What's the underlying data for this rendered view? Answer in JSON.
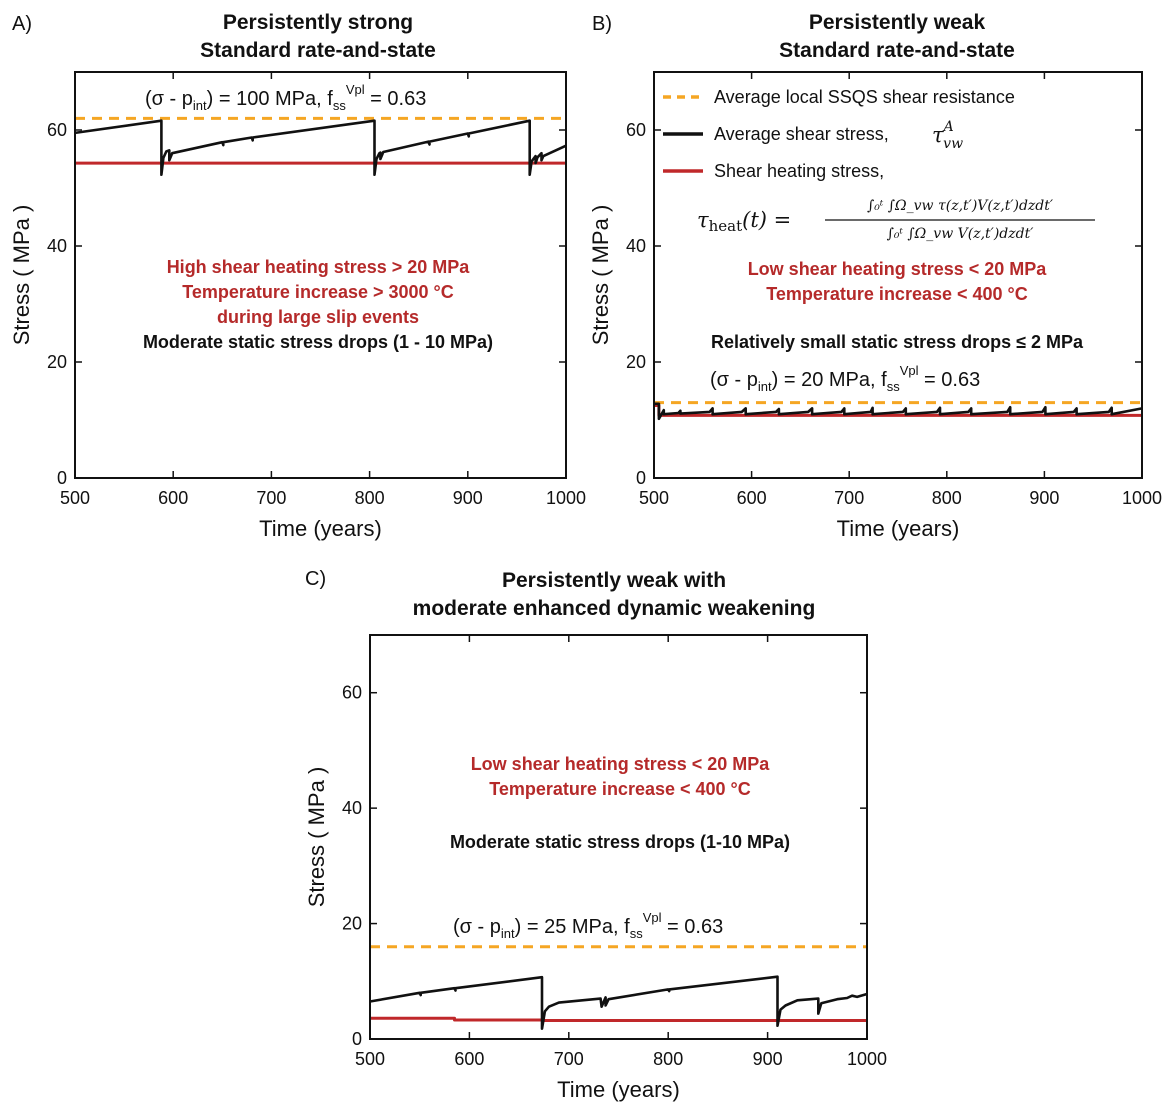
{
  "colors": {
    "resistance": "#f5a623",
    "shear": "#111111",
    "heating": "#c0282a",
    "annotation_red": "#b52a2a"
  },
  "legend": {
    "resistance": "Average local SSQS shear resistance",
    "shear": "Average shear stress,",
    "shear_symbol": "τ",
    "shear_sup": "A",
    "shear_sub": "vw",
    "heating": "Shear heating stress,",
    "formula_lhs": "τ",
    "formula_lhs_sub": "heat",
    "formula_lhs_arg": "(t) =",
    "formula_num": "∫₀ᵗ ∫Ω_vw τ(z,t′)V(z,t′)dzdt′",
    "formula_den": "∫₀ᵗ ∫Ω_vw V(z,t′)dzdt′"
  },
  "chart_data": [
    {
      "type": "line",
      "panel_label": "A)",
      "title_lines": [
        "Persistently strong",
        "Standard rate-and-state"
      ],
      "xlabel": "Time (years)",
      "ylabel": "Stress ( MPa )",
      "xlim": [
        500,
        1000
      ],
      "ylim": [
        0,
        70
      ],
      "xticks": [
        500,
        600,
        700,
        800,
        900,
        1000
      ],
      "yticks": [
        0,
        20,
        40,
        60
      ],
      "params": {
        "p1": "(σ - p",
        "p1_sub": "int",
        "p2": ") = 100 MPa,  f",
        "p2_sub": "ss",
        "p2_sup": "Vpl",
        "p3": " = 0.63"
      },
      "annotations_red": [
        "High shear heating stress > 20 MPa",
        "Temperature increase > 3000 °C",
        "during large slip events"
      ],
      "annotations_black": [
        "Moderate static stress drops  (1 - 10 MPa)"
      ],
      "series": [
        {
          "key": "resistance",
          "style": "dashed",
          "x": [
            500,
            1000
          ],
          "y": [
            62,
            62
          ]
        },
        {
          "key": "heating",
          "style": "solid",
          "x": [
            500,
            1000
          ],
          "y": [
            54.3,
            54.3
          ]
        },
        {
          "key": "shear",
          "style": "solid",
          "x": [
            500,
            588,
            588,
            590,
            593,
            596,
            596,
            599,
            650,
            651,
            651,
            680,
            681,
            681,
            805,
            805,
            807,
            810,
            811,
            811,
            814,
            860,
            861,
            861,
            900,
            901,
            901,
            963,
            963,
            965,
            969,
            969,
            971,
            975,
            975,
            977,
            1000
          ],
          "y": [
            59.5,
            61.6,
            52.3,
            55.2,
            56.3,
            56.5,
            54.8,
            56.0,
            57.9,
            57.4,
            57.9,
            58.7,
            58.2,
            58.7,
            61.6,
            52.3,
            55.0,
            56.0,
            56.1,
            55.0,
            56.2,
            58.0,
            57.5,
            58.0,
            59.4,
            58.9,
            59.4,
            61.6,
            52.3,
            54.6,
            55.5,
            54.3,
            55.3,
            56.0,
            54.8,
            55.5,
            57.3
          ]
        }
      ]
    },
    {
      "type": "line",
      "panel_label": "B)",
      "title_lines": [
        "Persistently weak",
        "Standard rate-and-state"
      ],
      "xlabel": "Time (years)",
      "ylabel": "Stress ( MPa )",
      "xlim": [
        500,
        1000
      ],
      "ylim": [
        0,
        70
      ],
      "xticks": [
        500,
        600,
        700,
        800,
        900,
        1000
      ],
      "yticks": [
        0,
        20,
        40,
        60
      ],
      "params": {
        "p1": "(σ - p",
        "p1_sub": "int",
        "p2": ") = 20 MPa,  f",
        "p2_sub": "ss",
        "p2_sup": "Vpl",
        "p3": " = 0.63"
      },
      "annotations_red": [
        "Low shear heating stress < 20 MPa",
        "Temperature increase < 400 °C"
      ],
      "annotations_black": [
        "Relatively small static stress drops ≤ 2 MPa"
      ],
      "series": [
        {
          "key": "resistance",
          "style": "dashed",
          "x": [
            500,
            1000
          ],
          "y": [
            13,
            13
          ]
        },
        {
          "key": "heating",
          "style": "solid",
          "x": [
            500,
            505,
            505,
            1000
          ],
          "y": [
            12.5,
            12.5,
            10.8,
            10.8
          ]
        },
        {
          "key": "shear",
          "style": "solid",
          "x": [
            500,
            505,
            505,
            510,
            510,
            525,
            527,
            527,
            557,
            560,
            560,
            590,
            594,
            594,
            625,
            628,
            628,
            658,
            662,
            662,
            692,
            695,
            695,
            722,
            724,
            724,
            755,
            758,
            758,
            790,
            793,
            793,
            822,
            825,
            825,
            862,
            865,
            865,
            898,
            901,
            901,
            930,
            933,
            933,
            966,
            969,
            969,
            1000
          ],
          "y": [
            12.8,
            12.8,
            10.2,
            11.7,
            11.0,
            11.2,
            11.6,
            11.1,
            11.4,
            12.0,
            11.0,
            11.4,
            12.0,
            11.0,
            11.4,
            11.9,
            11.0,
            11.4,
            12.0,
            11.0,
            11.4,
            12.0,
            11.0,
            11.4,
            12.1,
            11.0,
            11.4,
            12.0,
            11.0,
            11.4,
            12.1,
            11.0,
            11.4,
            12.0,
            11.0,
            11.4,
            12.2,
            11.0,
            11.4,
            12.2,
            11.0,
            11.4,
            12.0,
            11.0,
            11.4,
            12.1,
            11.0,
            12.0
          ]
        }
      ]
    },
    {
      "type": "line",
      "panel_label": "C)",
      "title_lines": [
        "Persistently weak with",
        "moderate enhanced dynamic weakening"
      ],
      "xlabel": "Time (years)",
      "ylabel": "Stress ( MPa )",
      "xlim": [
        500,
        1000
      ],
      "ylim": [
        0,
        70
      ],
      "xticks": [
        500,
        600,
        700,
        800,
        900,
        1000
      ],
      "yticks": [
        0,
        20,
        40,
        60
      ],
      "params": {
        "p1": "(σ - p",
        "p1_sub": "int",
        "p2": ") = 25 MPa,  f",
        "p2_sub": "ss",
        "p2_sup": "Vpl",
        "p3": " = 0.63"
      },
      "annotations_red": [
        "Low shear heating stress < 20 MPa",
        "Temperature increase < 400 °C"
      ],
      "annotations_black": [
        "Moderate static stress drops (1-10 MPa)"
      ],
      "series": [
        {
          "key": "resistance",
          "style": "dashed",
          "x": [
            500,
            1000
          ],
          "y": [
            16,
            16
          ]
        },
        {
          "key": "heating",
          "style": "solid",
          "x": [
            500,
            585,
            585,
            675,
            675,
            1000
          ],
          "y": [
            3.6,
            3.6,
            3.3,
            3.3,
            3.2,
            3.2
          ]
        },
        {
          "key": "shear",
          "style": "solid",
          "x": [
            500,
            550,
            551,
            551,
            585,
            586,
            586,
            673,
            673,
            676,
            680,
            690,
            732,
            733,
            737,
            737,
            740,
            800,
            801,
            801,
            910,
            910,
            913,
            918,
            930,
            951,
            951,
            954,
            970,
            980,
            985,
            990,
            1000
          ],
          "y": [
            6.5,
            8.0,
            7.6,
            8.0,
            8.8,
            8.4,
            8.8,
            10.7,
            1.8,
            4.8,
            5.6,
            6.3,
            7.0,
            5.6,
            7.2,
            5.8,
            6.9,
            8.6,
            8.3,
            8.6,
            10.8,
            2.3,
            5.1,
            5.8,
            6.7,
            7.0,
            4.4,
            6.2,
            6.9,
            7.1,
            7.5,
            7.3,
            7.8
          ]
        }
      ]
    }
  ]
}
